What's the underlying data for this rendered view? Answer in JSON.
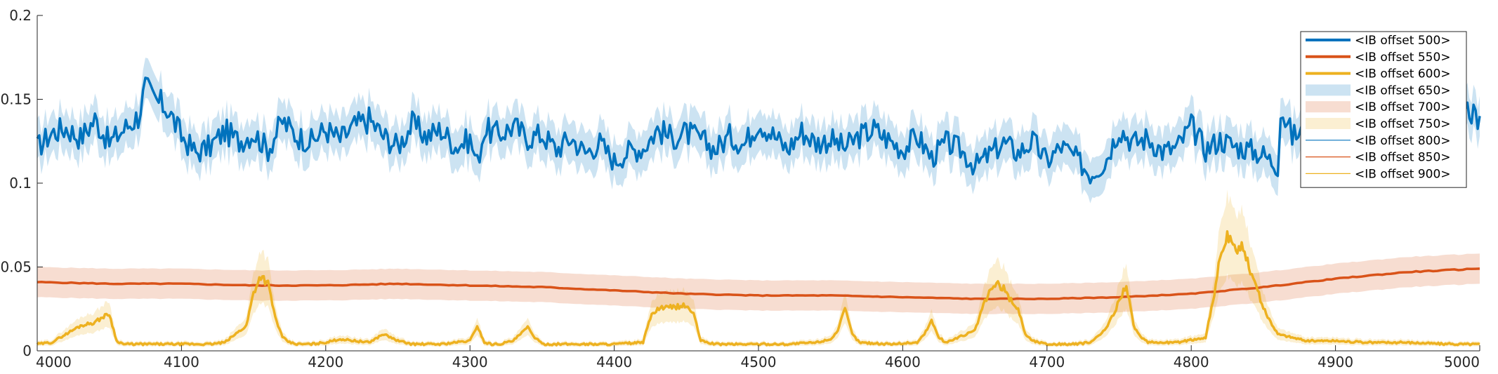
{
  "chart_data": {
    "type": "line",
    "xlim": [
      4000,
      5000
    ],
    "ylim": [
      0,
      0.2
    ],
    "grid": false,
    "legend_position": "top-right",
    "x_ticks": [
      4000,
      4100,
      4200,
      4300,
      4400,
      4500,
      4600,
      4700,
      4800,
      4900,
      5000
    ],
    "x_tick_labels": [
      "4000",
      "4100",
      "4200",
      "4300",
      "4400",
      "4500",
      "4600",
      "4700",
      "4800",
      "4900",
      "5000"
    ],
    "y_ticks": [
      0,
      0.05,
      0.1,
      0.15,
      0.2
    ],
    "y_tick_labels": [
      "0",
      "0.05",
      "0.1",
      "0.15",
      "0.2"
    ],
    "colors": {
      "blue": "#0072BD",
      "orange": "#D95319",
      "yellow": "#EDB120"
    },
    "legend": [
      {
        "label": "<IB offset 500>",
        "kind": "line-thick",
        "color": "#0072BD"
      },
      {
        "label": "<IB offset 550>",
        "kind": "line-thick",
        "color": "#D95319"
      },
      {
        "label": "<IB offset 600>",
        "kind": "line-thick",
        "color": "#EDB120"
      },
      {
        "label": "<IB offset 650>",
        "kind": "patch",
        "color": "#0072BD"
      },
      {
        "label": "<IB offset 700>",
        "kind": "patch",
        "color": "#D95319"
      },
      {
        "label": "<IB offset 750>",
        "kind": "patch",
        "color": "#EDB120"
      },
      {
        "label": "<IB offset 800>",
        "kind": "line-thin",
        "color": "#0072BD"
      },
      {
        "label": "<IB offset 850>",
        "kind": "line-thin",
        "color": "#D95319"
      },
      {
        "label": "<IB offset 900>",
        "kind": "line-thin",
        "color": "#EDB120"
      }
    ],
    "series": [
      {
        "color": "#0072BD",
        "band_halfwidth": 0.012,
        "x": [
          4000,
          4010,
          4020,
          4030,
          4040,
          4050,
          4060,
          4070,
          4075,
          4080,
          4090,
          4100,
          4110,
          4120,
          4130,
          4140,
          4150,
          4160,
          4170,
          4180,
          4190,
          4200,
          4210,
          4220,
          4230,
          4240,
          4250,
          4260,
          4270,
          4280,
          4290,
          4300,
          4305,
          4310,
          4320,
          4330,
          4340,
          4350,
          4360,
          4370,
          4380,
          4390,
          4400,
          4410,
          4420,
          4430,
          4440,
          4450,
          4460,
          4470,
          4480,
          4490,
          4500,
          4510,
          4520,
          4530,
          4540,
          4550,
          4560,
          4570,
          4580,
          4590,
          4600,
          4610,
          4620,
          4630,
          4640,
          4650,
          4660,
          4670,
          4680,
          4690,
          4700,
          4710,
          4720,
          4730,
          4740,
          4750,
          4760,
          4770,
          4780,
          4790,
          4800,
          4810,
          4820,
          4830,
          4840,
          4850,
          4860,
          4862,
          4870,
          4880,
          4890,
          4900,
          4910,
          4920,
          4930,
          4940,
          4950,
          4960,
          4970,
          4980,
          4990,
          5000
        ],
        "y": [
          0.121,
          0.13,
          0.133,
          0.127,
          0.138,
          0.124,
          0.132,
          0.14,
          0.157,
          0.15,
          0.145,
          0.128,
          0.118,
          0.122,
          0.131,
          0.125,
          0.13,
          0.12,
          0.137,
          0.128,
          0.125,
          0.132,
          0.126,
          0.134,
          0.138,
          0.128,
          0.122,
          0.135,
          0.128,
          0.132,
          0.122,
          0.126,
          0.112,
          0.132,
          0.129,
          0.134,
          0.127,
          0.129,
          0.12,
          0.127,
          0.118,
          0.124,
          0.113,
          0.119,
          0.121,
          0.132,
          0.127,
          0.13,
          0.126,
          0.12,
          0.128,
          0.123,
          0.137,
          0.129,
          0.12,
          0.131,
          0.124,
          0.126,
          0.121,
          0.128,
          0.132,
          0.126,
          0.12,
          0.128,
          0.115,
          0.124,
          0.12,
          0.11,
          0.117,
          0.124,
          0.118,
          0.125,
          0.113,
          0.122,
          0.115,
          0.105,
          0.112,
          0.133,
          0.124,
          0.127,
          0.119,
          0.121,
          0.134,
          0.12,
          0.126,
          0.122,
          0.12,
          0.117,
          0.11,
          0.145,
          0.128,
          0.132,
          0.136,
          0.13,
          0.126,
          0.128,
          0.133,
          0.137,
          0.135,
          0.138,
          0.133,
          0.137,
          0.14,
          0.14
        ]
      },
      {
        "color": "#D95319",
        "band_halfwidth": 0.009,
        "x": [
          4000,
          4050,
          4100,
          4150,
          4200,
          4250,
          4300,
          4350,
          4400,
          4450,
          4500,
          4550,
          4600,
          4650,
          4700,
          4750,
          4800,
          4850,
          4900,
          4950,
          5000
        ],
        "y": [
          0.041,
          0.04,
          0.04,
          0.039,
          0.039,
          0.04,
          0.039,
          0.038,
          0.036,
          0.034,
          0.033,
          0.033,
          0.032,
          0.031,
          0.031,
          0.032,
          0.034,
          0.038,
          0.043,
          0.047,
          0.049
        ]
      },
      {
        "color": "#EDB120",
        "x": [
          4000,
          4010,
          4020,
          4030,
          4040,
          4045,
          4050,
          4055,
          4060,
          4080,
          4100,
          4120,
          4130,
          4145,
          4150,
          4155,
          4160,
          4165,
          4170,
          4175,
          4180,
          4190,
          4200,
          4210,
          4220,
          4230,
          4240,
          4250,
          4260,
          4270,
          4280,
          4290,
          4300,
          4305,
          4310,
          4315,
          4320,
          4330,
          4335,
          4340,
          4345,
          4350,
          4360,
          4380,
          4400,
          4420,
          4425,
          4430,
          4440,
          4450,
          4455,
          4460,
          4470,
          4500,
          4520,
          4540,
          4550,
          4555,
          4560,
          4565,
          4570,
          4590,
          4610,
          4615,
          4620,
          4625,
          4630,
          4650,
          4655,
          4660,
          4665,
          4670,
          4675,
          4680,
          4685,
          4690,
          4700,
          4720,
          4730,
          4740,
          4745,
          4750,
          4755,
          4760,
          4765,
          4770,
          4790,
          4810,
          4815,
          4820,
          4825,
          4830,
          4835,
          4840,
          4845,
          4850,
          4860,
          4870,
          4880,
          4900,
          4920,
          4950,
          4980,
          5000
        ],
        "y": [
          0.004,
          0.005,
          0.01,
          0.015,
          0.017,
          0.02,
          0.022,
          0.006,
          0.004,
          0.004,
          0.004,
          0.004,
          0.005,
          0.015,
          0.035,
          0.045,
          0.04,
          0.02,
          0.008,
          0.005,
          0.004,
          0.004,
          0.005,
          0.007,
          0.006,
          0.005,
          0.01,
          0.006,
          0.004,
          0.004,
          0.004,
          0.005,
          0.006,
          0.015,
          0.005,
          0.004,
          0.004,
          0.006,
          0.01,
          0.014,
          0.008,
          0.004,
          0.004,
          0.004,
          0.004,
          0.005,
          0.02,
          0.025,
          0.026,
          0.027,
          0.022,
          0.006,
          0.004,
          0.004,
          0.004,
          0.005,
          0.007,
          0.012,
          0.025,
          0.01,
          0.005,
          0.004,
          0.005,
          0.01,
          0.018,
          0.008,
          0.005,
          0.012,
          0.025,
          0.035,
          0.04,
          0.037,
          0.03,
          0.025,
          0.01,
          0.006,
          0.004,
          0.004,
          0.005,
          0.012,
          0.02,
          0.03,
          0.04,
          0.015,
          0.008,
          0.005,
          0.005,
          0.008,
          0.03,
          0.055,
          0.068,
          0.06,
          0.062,
          0.05,
          0.04,
          0.025,
          0.01,
          0.008,
          0.006,
          0.006,
          0.005,
          0.005,
          0.004,
          0.004
        ]
      }
    ]
  }
}
